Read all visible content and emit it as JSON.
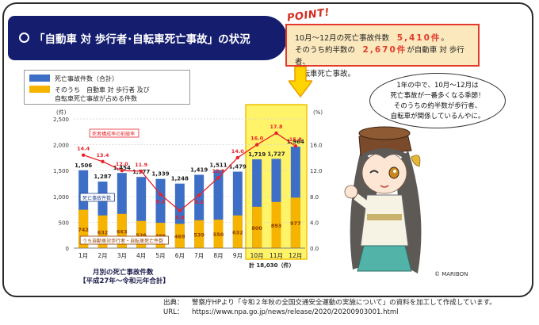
{
  "header": {
    "title": "「自動車 対 歩行者･自転車死亡事故」の状況"
  },
  "point": {
    "tag": "POINT!",
    "line1_pre": "10月～12月の死亡事故件数",
    "line1_value": "5,410件",
    "line1_post": "。",
    "line2_pre": "そのうち約半数の",
    "line2_value": "2,670件",
    "line2_post": "が自動車 対 歩行者、",
    "line3": "自転車死亡事故。"
  },
  "legend": {
    "item1": "死亡事故件数（合計）",
    "item2_line1": "そのうち　自動車 対 歩行者 及び",
    "item2_line2": "自転車死亡事故が占める件数"
  },
  "bubble": {
    "line1": "1年の中で、10月～12月は",
    "line2": "死亡事故が一番多くなる季節！",
    "line3": "そのうちの約半数が歩行者、",
    "line4": "自転車が関係しているんやに。"
  },
  "credit": "© MARIBON",
  "source": {
    "label1": "出典：",
    "text1": "警察庁HPより「令和２年秋の全国交通安全運動の実施について」の資料を加工して作成しています。",
    "label2": "URL：",
    "text2": "https://www.npa.go.jp/news/release/2020/20200903001.html"
  },
  "colors": {
    "total_bar": "#3e6fc6",
    "ped_bar": "#f6b400",
    "ratio_line": "#e8232a",
    "highlight": "#fff36a",
    "banner": "#141d6e"
  },
  "chart_data": {
    "type": "bar",
    "categories": [
      "1月",
      "2月",
      "3月",
      "4月",
      "5月",
      "6月",
      "7月",
      "8月",
      "9月",
      "10月",
      "11月",
      "12月"
    ],
    "series": [
      {
        "name": "死亡事故件数",
        "values": [
          1506,
          1287,
          1454,
          1377,
          1339,
          1248,
          1419,
          1511,
          1479,
          1719,
          1727,
          1964
        ]
      },
      {
        "name": "自動車対歩行者・自転車死亡事故件数",
        "values": [
          742,
          632,
          663,
          526,
          489,
          469,
          539,
          550,
          632,
          800,
          893,
          977
        ]
      },
      {
        "name": "構成率",
        "values": [
          14.4,
          13.4,
          12.0,
          11.9,
          8.3,
          5.8,
          8.2,
          10.9,
          14.0,
          16.0,
          17.8,
          15.8
        ]
      }
    ],
    "ylim_left": [
      0,
      2500
    ],
    "yticks_left": [
      "0",
      "500",
      "1,000",
      "1,500",
      "2,000",
      "2,500"
    ],
    "yunit_left": "(件)",
    "ylim_right": [
      0,
      20
    ],
    "yticks_right": [
      "0.0",
      "4.0",
      "8.0",
      "12.0",
      "16.0"
    ],
    "yunit_right": "(%)",
    "series_tags": {
      "ratio": "死者構成率の前級率",
      "total": "死亡事故件数",
      "ped": "うち自動車対歩行者・自転車死亡件数"
    },
    "xlabel_line1": "月別の死亡事故件数",
    "xlabel_line2": "【平成27年～令和元年合計】",
    "highlight_range": [
      "10月",
      "12月"
    ],
    "highlight_total_label": "計 18,030（件）",
    "value_labels_total": [
      "1,506",
      "1,287",
      "1,454",
      "1,377",
      "1,339",
      "1,248",
      "1,419",
      "1,511",
      "1,479",
      "1,719",
      "1,727",
      "1,964"
    ],
    "value_labels_ped": [
      "742",
      "632",
      "663",
      "526",
      "489",
      "469",
      "539",
      "550",
      "632",
      "800",
      "893",
      "977"
    ],
    "value_labels_ratio": [
      "14.4",
      "13.4",
      "12.0",
      "11.9",
      "8.3",
      "5.8",
      "8.2",
      "10.9",
      "14.0",
      "16.0",
      "17.8",
      "15.8"
    ]
  }
}
